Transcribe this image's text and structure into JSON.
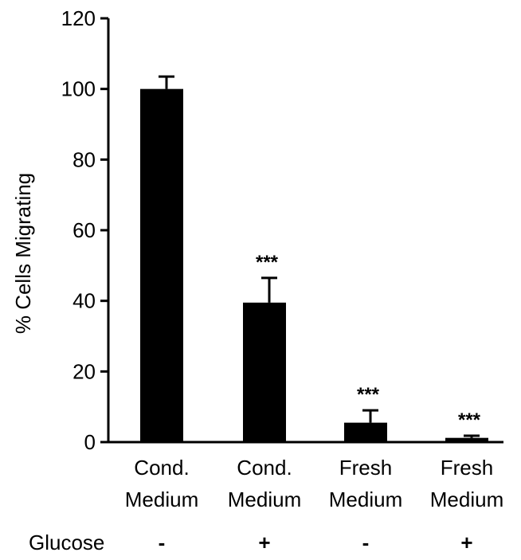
{
  "chart_data": {
    "type": "bar",
    "title": "",
    "xlabel": "",
    "ylabel": "% Cells  Migrating",
    "ylim": [
      0,
      120
    ],
    "yticks": [
      0,
      20,
      40,
      60,
      80,
      100,
      120
    ],
    "categories": [
      [
        "Cond.",
        "Medium"
      ],
      [
        "Cond.",
        "Medium"
      ],
      [
        "Fresh",
        "Medium"
      ],
      [
        "Fresh",
        "Medium"
      ]
    ],
    "values": [
      100,
      39.5,
      5.5,
      1.2
    ],
    "errors": [
      3.5,
      7,
      3.5,
      0.6
    ],
    "significance": [
      "",
      "***",
      "***",
      "***"
    ],
    "bar_color": "#000000",
    "grid": false,
    "legend": "none"
  },
  "glucose_row": {
    "label": "Glucose",
    "values": [
      "-",
      "+",
      "-",
      "+"
    ]
  }
}
